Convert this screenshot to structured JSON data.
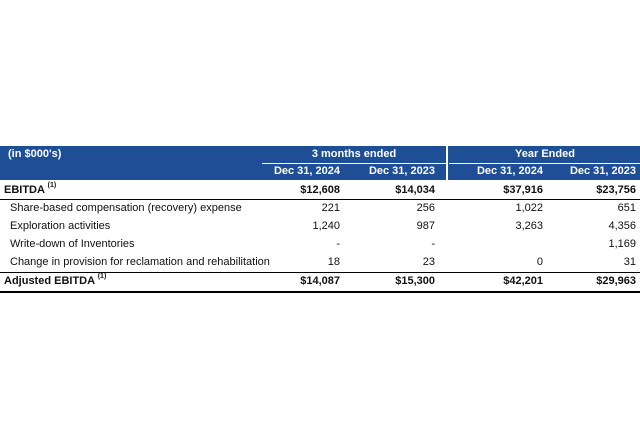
{
  "header": {
    "units": "(in $000's)",
    "group_3m": "3 months ended",
    "group_year": "Year Ended",
    "cols": [
      "Dec 31, 2024",
      "Dec 31, 2023",
      "Dec 31, 2024",
      "Dec 31, 2023"
    ]
  },
  "rows": [
    {
      "label": "EBITDA",
      "sup": "(1)",
      "bold": true,
      "values": [
        "$12,608",
        "$14,034",
        "$37,916",
        "$23,756"
      ]
    },
    {
      "label": "Share-based compensation (recovery) expense",
      "sup": "",
      "bold": false,
      "values": [
        "221",
        "256",
        "1,022",
        "651"
      ]
    },
    {
      "label": "Exploration activities",
      "sup": "",
      "bold": false,
      "values": [
        "1,240",
        "987",
        "3,263",
        "4,356"
      ]
    },
    {
      "label": "Write-down of Inventories",
      "sup": "",
      "bold": false,
      "values": [
        "-",
        "-",
        "",
        "1,169"
      ]
    },
    {
      "label": "Change in provision for reclamation and rehabilitation",
      "sup": "",
      "bold": false,
      "values": [
        "18",
        "23",
        "0",
        "31"
      ]
    },
    {
      "label": "Adjusted EBITDA",
      "sup": "(1)",
      "bold": true,
      "values": [
        "$14,087",
        "$15,300",
        "$42,201",
        "$29,963"
      ]
    }
  ]
}
